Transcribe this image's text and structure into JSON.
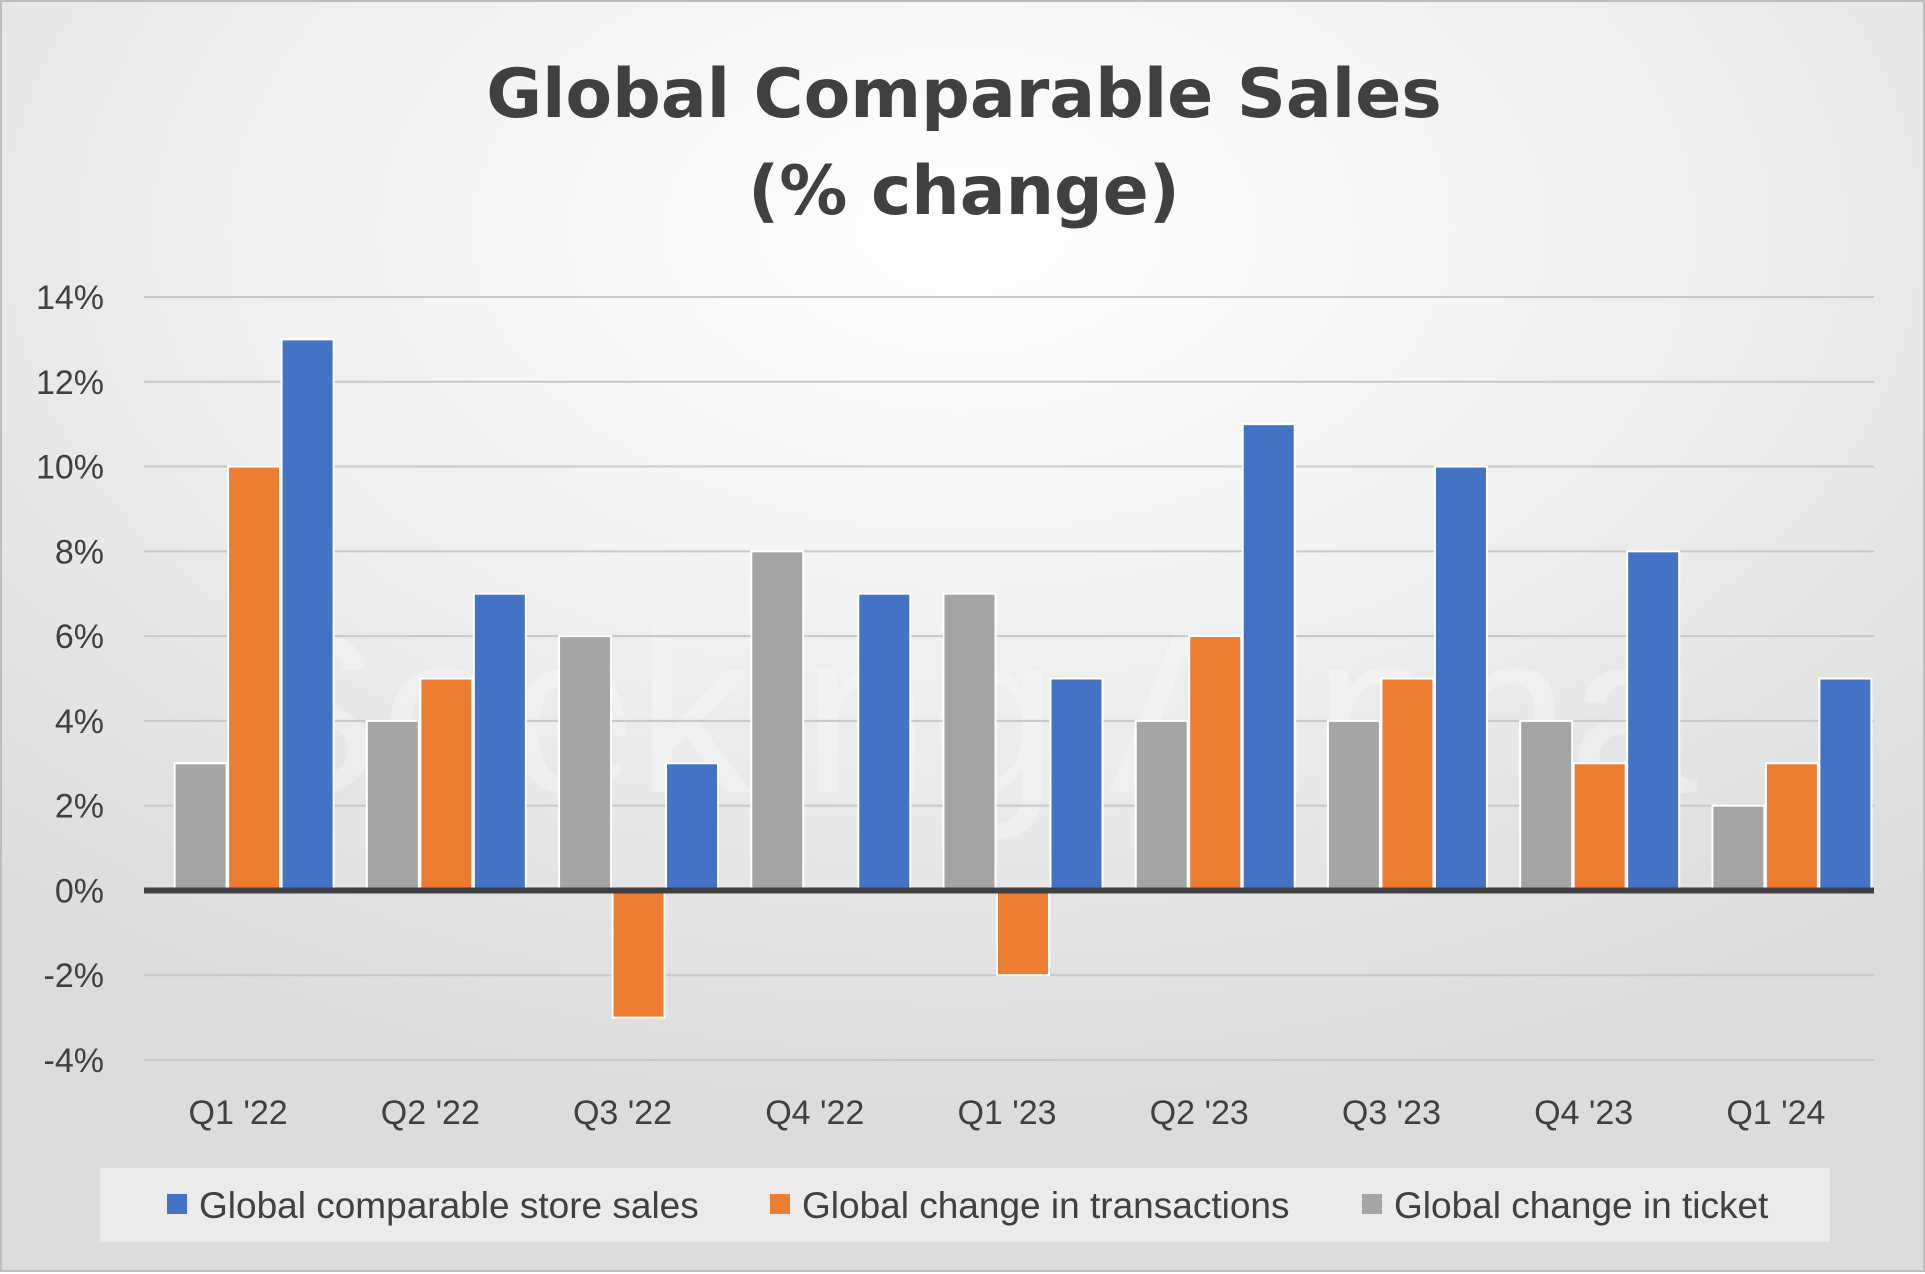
{
  "chart_data": {
    "type": "bar",
    "title": [
      "Global Comparable Sales",
      "(% change)"
    ],
    "xlabel": "",
    "ylabel": "",
    "categories": [
      "Q1 '22",
      "Q2 '22",
      "Q3 '22",
      "Q4 '22",
      "Q1 '23",
      "Q2 '23",
      "Q3 '23",
      "Q4 '23",
      "Q1 '24"
    ],
    "series": [
      {
        "name": "Global change in ticket",
        "color": "#a5a5a5",
        "values": [
          3,
          4,
          6,
          8,
          7,
          4,
          4,
          4,
          2
        ]
      },
      {
        "name": "Global change in transactions",
        "color": "#ed7d31",
        "values": [
          10,
          5,
          -3,
          null,
          -2,
          6,
          5,
          3,
          3
        ]
      },
      {
        "name": "Global comparable store sales",
        "color": "#4472c4",
        "values": [
          13,
          7,
          3,
          7,
          5,
          11,
          10,
          8,
          5
        ]
      }
    ],
    "legend_order": [
      "Global comparable store sales",
      "Global change in transactions",
      "Global change in ticket"
    ],
    "ylim": [
      -4,
      14
    ],
    "yticks": [
      -4,
      -2,
      0,
      2,
      4,
      6,
      8,
      10,
      12,
      14
    ],
    "ytick_labels": [
      "-4%",
      "-2%",
      "0%",
      "2%",
      "4%",
      "6%",
      "8%",
      "10%",
      "12%",
      "14%"
    ],
    "grid": true,
    "legend_position": "bottom"
  },
  "watermark": "Seeking Alpha"
}
